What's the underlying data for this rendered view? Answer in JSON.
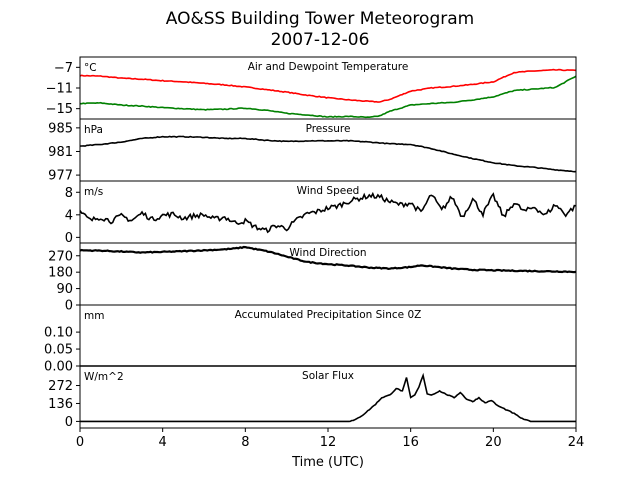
{
  "title": "AO&SS Building Tower Meteorogram",
  "subtitle": "2007-12-06",
  "xlabel": "Time (UTC)",
  "x_ticks": [
    0,
    4,
    8,
    12,
    16,
    20,
    24
  ],
  "colors": {
    "temperature": "#ff0000",
    "dewpoint": "#008000",
    "other": "#000000"
  },
  "chart_data": [
    {
      "type": "line",
      "panel_title": "Air and Dewpoint Temperature",
      "unit_label": "°C",
      "xlim": [
        0,
        24
      ],
      "ylim": [
        -17,
        -5
      ],
      "y_ticks": [
        -7,
        -11,
        -15
      ],
      "y_tick_labels": [
        "−7",
        "−11",
        "−15"
      ],
      "series": [
        {
          "key": "temperature",
          "x": [
            0,
            1,
            2,
            3,
            4,
            5,
            6,
            7,
            8,
            9,
            10,
            11,
            12,
            13,
            14,
            14.5,
            15,
            16,
            17,
            18,
            19,
            20,
            21,
            22,
            23,
            24
          ],
          "values": [
            -8.6,
            -8.7,
            -9.1,
            -9.3,
            -9.6,
            -9.8,
            -10.1,
            -10.4,
            -10.8,
            -11.3,
            -11.8,
            -12.4,
            -12.9,
            -13.3,
            -13.6,
            -13.7,
            -13.2,
            -11.6,
            -11.0,
            -10.7,
            -10.3,
            -9.8,
            -8.0,
            -7.7,
            -7.5,
            -7.6
          ]
        },
        {
          "key": "dewpoint",
          "x": [
            0,
            1,
            2,
            3,
            4,
            5,
            6,
            7,
            8,
            9,
            10,
            11,
            12,
            13,
            14,
            14.5,
            15,
            16,
            17,
            18,
            19,
            20,
            21,
            22,
            23,
            24
          ],
          "values": [
            -14.0,
            -13.9,
            -14.3,
            -14.5,
            -14.8,
            -15.0,
            -15.2,
            -15.1,
            -14.9,
            -15.3,
            -15.9,
            -16.2,
            -16.6,
            -16.5,
            -16.7,
            -16.4,
            -15.5,
            -14.3,
            -14.0,
            -13.8,
            -13.3,
            -12.7,
            -11.5,
            -11.2,
            -10.9,
            -8.7
          ]
        }
      ]
    },
    {
      "type": "line",
      "panel_title": "Pressure",
      "unit_label": "hPa",
      "xlim": [
        0,
        24
      ],
      "ylim": [
        976,
        986.5
      ],
      "y_ticks": [
        985,
        981,
        977
      ],
      "y_tick_labels": [
        "985",
        "981",
        "977"
      ],
      "series": [
        {
          "key": "other",
          "x": [
            0,
            1,
            2,
            3,
            4,
            5,
            6,
            7,
            8,
            9,
            10,
            11,
            12,
            13,
            14,
            15,
            16,
            17,
            18,
            19,
            20,
            21,
            22,
            23,
            24
          ],
          "values": [
            981.9,
            982.2,
            982.6,
            983.2,
            983.5,
            983.5,
            983.4,
            983.2,
            983.2,
            982.9,
            982.7,
            982.8,
            982.8,
            982.8,
            982.6,
            982.3,
            982.2,
            981.5,
            980.6,
            979.8,
            979.1,
            978.6,
            978.3,
            977.9,
            977.6
          ]
        }
      ]
    },
    {
      "type": "line",
      "panel_title": "Wind Speed",
      "unit_label": "m/s",
      "xlim": [
        0,
        24
      ],
      "ylim": [
        -1,
        10
      ],
      "y_ticks": [
        8,
        4,
        0
      ],
      "y_tick_labels": [
        "8",
        "4",
        "0"
      ],
      "series": [
        {
          "key": "other",
          "x": [
            0,
            0.5,
            1,
            1.5,
            2,
            2.5,
            3,
            3.5,
            4,
            4.5,
            5,
            5.5,
            6,
            6.5,
            7,
            7.5,
            8,
            8.5,
            9,
            9.5,
            10,
            10.5,
            11,
            11.5,
            12,
            12.5,
            13,
            13.5,
            14,
            14.5,
            15,
            15.5,
            16,
            16.5,
            17,
            17.5,
            18,
            18.5,
            19,
            19.5,
            20,
            20.5,
            21,
            21.5,
            22,
            22.5,
            23,
            23.5,
            24
          ],
          "values": [
            4.5,
            3.0,
            3.6,
            2.9,
            3.8,
            3.0,
            4.3,
            3.2,
            3.9,
            4.1,
            3.4,
            3.8,
            4.0,
            3.2,
            3.6,
            2.6,
            2.9,
            1.8,
            1.2,
            2.1,
            1.6,
            3.1,
            4.2,
            4.6,
            5.2,
            5.6,
            6.4,
            6.9,
            7.4,
            7.2,
            6.3,
            5.8,
            6.1,
            4.4,
            7.6,
            4.8,
            7.2,
            3.6,
            6.8,
            4.2,
            7.4,
            3.6,
            6.2,
            4.6,
            5.4,
            3.9,
            5.8,
            4.1,
            5.6
          ]
        }
      ]
    },
    {
      "type": "line",
      "panel_title": "Wind Direction",
      "unit_label": "",
      "xlim": [
        0,
        24
      ],
      "ylim": [
        0,
        340
      ],
      "y_ticks": [
        270,
        180,
        90,
        0
      ],
      "y_tick_labels": [
        "270",
        "180",
        "90",
        "0"
      ],
      "series": [
        {
          "key": "other",
          "x": [
            0,
            1,
            2,
            3,
            4,
            5,
            6,
            7,
            7.5,
            8,
            8.5,
            9,
            9.5,
            10,
            10.5,
            11,
            12,
            13,
            14,
            15,
            16,
            16.5,
            17,
            18,
            19,
            20,
            21,
            22,
            23,
            24
          ],
          "values": [
            300,
            298,
            293,
            288,
            291,
            295,
            300,
            305,
            310,
            318,
            306,
            296,
            282,
            265,
            250,
            236,
            224,
            216,
            205,
            200,
            208,
            218,
            212,
            200,
            193,
            190,
            188,
            186,
            184,
            182
          ]
        }
      ]
    },
    {
      "type": "line",
      "panel_title": "Accumulated Precipitation Since 0Z",
      "unit_label": "mm",
      "xlim": [
        0,
        24
      ],
      "ylim": [
        0,
        0.18
      ],
      "y_ticks": [
        0.1,
        0.05,
        0.0
      ],
      "y_tick_labels": [
        "0.10",
        "0.05",
        "0.00"
      ],
      "series": [
        {
          "key": "other",
          "x": [
            0,
            24
          ],
          "values": [
            0,
            0
          ]
        }
      ]
    },
    {
      "type": "line",
      "panel_title": "Solar Flux",
      "unit_label": "W/m^2",
      "xlim": [
        0,
        24
      ],
      "ylim": [
        -50,
        420
      ],
      "y_ticks": [
        272,
        136,
        0
      ],
      "y_tick_labels": [
        "272",
        "136",
        "0"
      ],
      "series": [
        {
          "key": "other",
          "x": [
            0,
            13.0,
            13.3,
            13.7,
            14.0,
            14.3,
            14.6,
            15.0,
            15.3,
            15.6,
            15.8,
            16.0,
            16.2,
            16.4,
            16.6,
            16.8,
            17.0,
            17.4,
            17.8,
            18.1,
            18.4,
            18.7,
            19.0,
            19.3,
            19.6,
            19.9,
            20.2,
            20.6,
            21.0,
            21.4,
            21.8,
            24
          ],
          "values": [
            0,
            0,
            10,
            50,
            90,
            130,
            180,
            200,
            250,
            230,
            330,
            180,
            200,
            260,
            350,
            210,
            200,
            230,
            200,
            180,
            220,
            170,
            150,
            180,
            140,
            160,
            120,
            90,
            60,
            20,
            0,
            0
          ]
        }
      ]
    }
  ]
}
